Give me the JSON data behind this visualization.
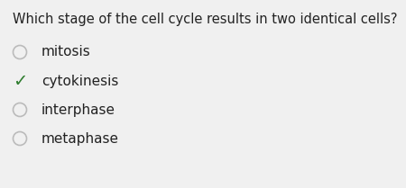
{
  "question": "Which stage of the cell cycle results in two identical cells?",
  "options": [
    "mitosis",
    "cytokinesis",
    "interphase",
    "metaphase"
  ],
  "correct_index": 1,
  "bg_color": "#f0f0f0",
  "text_color": "#222222",
  "circle_color": "#bbbbbb",
  "check_color": "#2e7d2e",
  "question_fontsize": 10.5,
  "option_fontsize": 11.0,
  "fig_width": 4.5,
  "fig_height": 2.09,
  "dpi": 100
}
